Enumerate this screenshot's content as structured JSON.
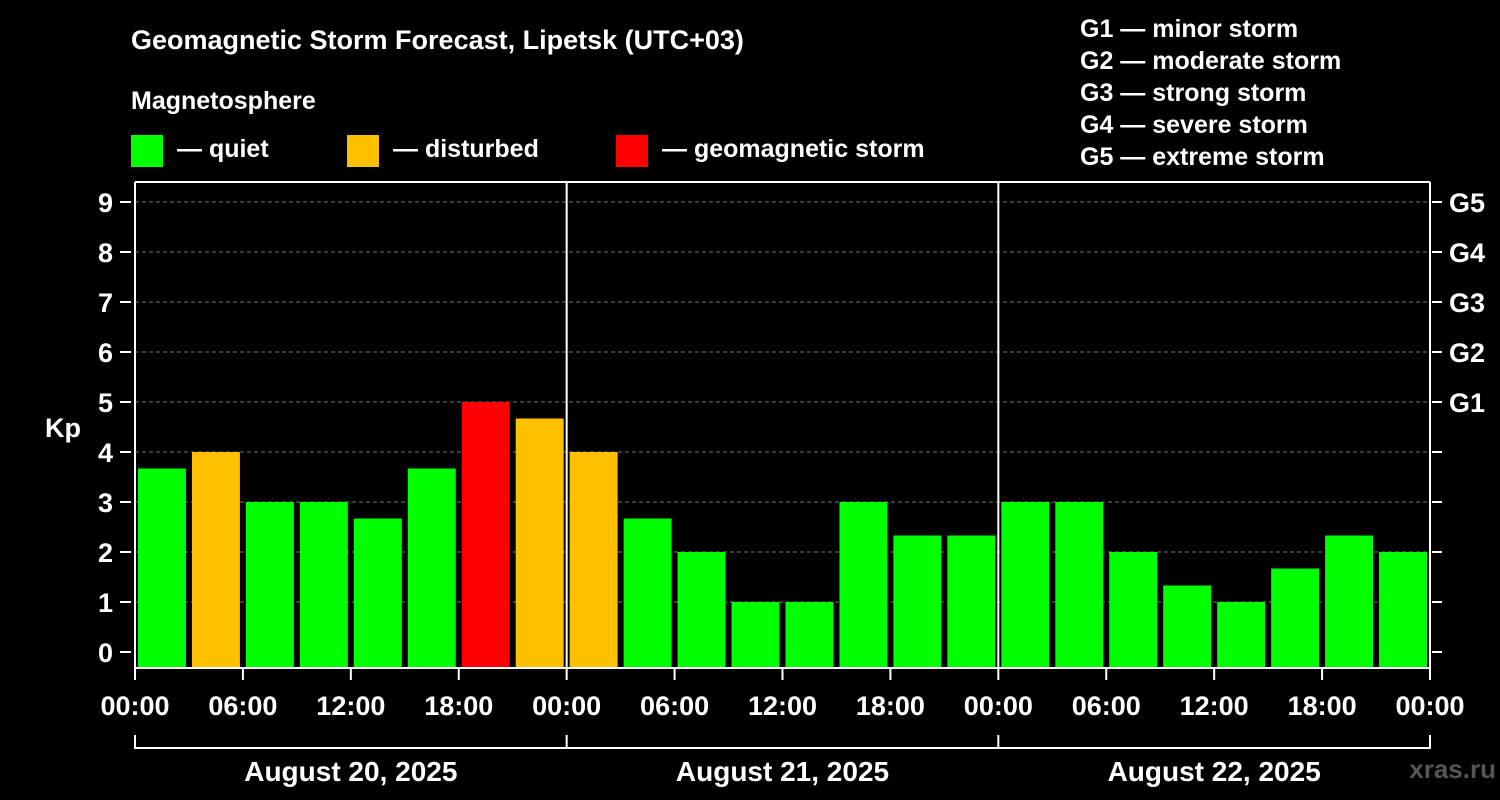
{
  "header": {
    "title": "Geomagnetic Storm Forecast, Lipetsk (UTC+03)",
    "legend_title": "Magnetosphere",
    "legend": [
      {
        "label": "— quiet",
        "color": "#00ff00"
      },
      {
        "label": "— disturbed",
        "color": "#ffc000"
      },
      {
        "label": "— geomagnetic storm",
        "color": "#ff0000"
      }
    ],
    "scale": [
      "G1 — minor storm",
      "G2 — moderate storm",
      "G3 — strong storm",
      "G4 — severe storm",
      "G5 — extreme storm"
    ]
  },
  "watermark": "xras.ru",
  "chart_data": {
    "type": "bar",
    "ylabel": "Kp",
    "ylim": [
      0,
      9
    ],
    "yticks": [
      "0",
      "1",
      "2",
      "3",
      "4",
      "5",
      "6",
      "7",
      "8",
      "9"
    ],
    "right_ticks": [
      {
        "kp": 5,
        "label": "G1"
      },
      {
        "kp": 6,
        "label": "G2"
      },
      {
        "kp": 7,
        "label": "G3"
      },
      {
        "kp": 8,
        "label": "G4"
      },
      {
        "kp": 9,
        "label": "G5"
      }
    ],
    "grid": "dashed horizontal",
    "xtick_labels": [
      "00:00",
      "06:00",
      "12:00",
      "18:00",
      "00:00",
      "06:00",
      "12:00",
      "18:00",
      "00:00",
      "06:00",
      "12:00",
      "18:00",
      "00:00"
    ],
    "days": [
      "August 20, 2025",
      "August 21, 2025",
      "August 22, 2025"
    ],
    "values": [
      3.67,
      4,
      3,
      3,
      2.67,
      3.67,
      5,
      4.67,
      4,
      2.67,
      2,
      1,
      1,
      3,
      2.33,
      2.33,
      3,
      3,
      2,
      1.33,
      1,
      1.67,
      2.33,
      2
    ],
    "bar_colors": [
      "#00ff00",
      "#ffc000",
      "#00ff00",
      "#00ff00",
      "#00ff00",
      "#00ff00",
      "#ff0000",
      "#ffc000",
      "#ffc000",
      "#00ff00",
      "#00ff00",
      "#00ff00",
      "#00ff00",
      "#00ff00",
      "#00ff00",
      "#00ff00",
      "#00ff00",
      "#00ff00",
      "#00ff00",
      "#00ff00",
      "#00ff00",
      "#00ff00",
      "#00ff00",
      "#00ff00"
    ]
  }
}
